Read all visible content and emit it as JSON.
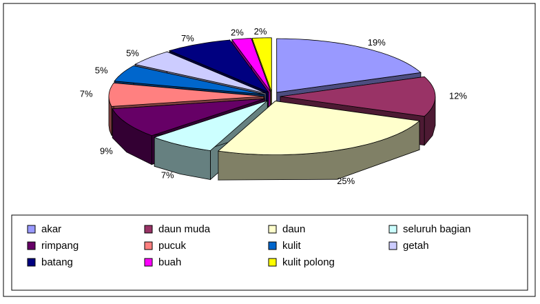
{
  "chart_data": {
    "type": "pie3d",
    "categories": [
      "akar",
      "daun muda",
      "daun",
      "seluruh bagian",
      "rimpang",
      "pucuk",
      "kulit",
      "getah",
      "batang",
      "buah",
      "kulit polong"
    ],
    "values": [
      19,
      12,
      25,
      7,
      9,
      7,
      5,
      5,
      7,
      2,
      2
    ],
    "value_labels": [
      "19%",
      "12%",
      "25%",
      "7%",
      "9%",
      "7%",
      "5%",
      "5%",
      "7%",
      "2%",
      "2%"
    ],
    "colors": [
      "#9999FF",
      "#993366",
      "#FFFFCC",
      "#CCFFFF",
      "#660066",
      "#FF8080",
      "#0066CC",
      "#CCCCFF",
      "#000080",
      "#FF00FF",
      "#FFFF00"
    ],
    "legend": "bottom"
  }
}
